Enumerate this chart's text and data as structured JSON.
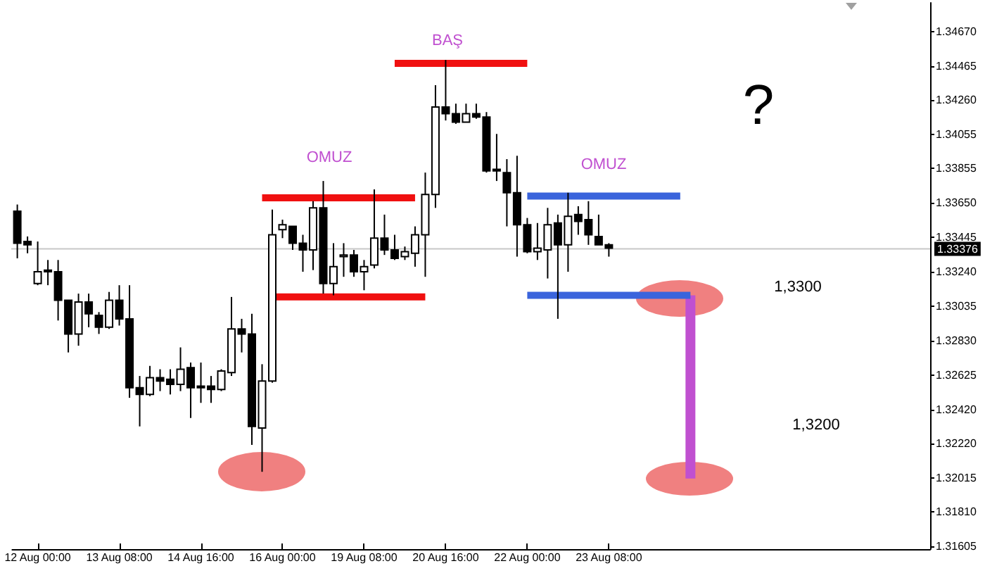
{
  "chart_data": {
    "type": "candlestick",
    "categories": [
      null,
      null,
      "12 Aug 00:00",
      null,
      null,
      null,
      null,
      null,
      null,
      null,
      "13 Aug 08:00",
      null,
      null,
      null,
      null,
      null,
      null,
      null,
      "14 Aug 16:00",
      null,
      null,
      null,
      null,
      null,
      null,
      null,
      "16 Aug 00:00",
      null,
      null,
      null,
      null,
      null,
      null,
      null,
      "19 Aug 08:00",
      null,
      null,
      null,
      null,
      null,
      null,
      null,
      "20 Aug 16:00",
      null,
      null,
      null,
      null,
      null,
      null,
      null,
      "22 Aug 00:00",
      null,
      null,
      null,
      null,
      null,
      null,
      null,
      "23 Aug 08:00",
      null,
      null,
      null,
      null,
      null,
      null,
      null,
      null,
      null,
      null,
      null,
      null,
      null,
      null,
      null,
      null,
      null,
      null,
      null,
      null,
      null,
      null,
      null,
      null,
      null,
      null,
      null,
      null,
      null,
      null,
      null
    ],
    "ohlc": [
      [
        1.336,
        1.3364,
        1.3332,
        1.3341
      ],
      [
        1.3342,
        1.3345,
        1.3335,
        1.334
      ],
      [
        1.3317,
        1.3342,
        1.3316,
        1.3324
      ],
      [
        1.3325,
        1.3331,
        1.3316,
        1.3324
      ],
      [
        1.3324,
        1.3331,
        1.3295,
        1.3307
      ],
      [
        1.3307,
        1.3307,
        1.3276,
        1.3287
      ],
      [
        1.3287,
        1.3311,
        1.328,
        1.3306
      ],
      [
        1.3306,
        1.3311,
        1.3291,
        1.3299
      ],
      [
        1.3298,
        1.33,
        1.3287,
        1.3291
      ],
      [
        1.3291,
        1.3312,
        1.329,
        1.3307
      ],
      [
        1.3307,
        1.3316,
        1.3292,
        1.3296
      ],
      [
        1.3296,
        1.3316,
        1.3249,
        1.3255
      ],
      [
        1.3255,
        1.3262,
        1.3232,
        1.3251
      ],
      [
        1.3251,
        1.3268,
        1.325,
        1.3261
      ],
      [
        1.3261,
        1.3266,
        1.3253,
        1.3259
      ],
      [
        1.326,
        1.3266,
        1.3251,
        1.3257
      ],
      [
        1.3257,
        1.3279,
        1.3253,
        1.3266
      ],
      [
        1.3267,
        1.327,
        1.3237,
        1.3255
      ],
      [
        1.3256,
        1.327,
        1.3246,
        1.3255
      ],
      [
        1.3256,
        1.3262,
        1.3246,
        1.3254
      ],
      [
        1.3254,
        1.3266,
        1.3253,
        1.3265
      ],
      [
        1.3264,
        1.3309,
        1.3262,
        1.329
      ],
      [
        1.329,
        1.3296,
        1.3276,
        1.3287
      ],
      [
        1.3287,
        1.3299,
        1.3221,
        1.3232
      ],
      [
        1.3231,
        1.3269,
        1.3205,
        1.3259
      ],
      [
        1.3259,
        1.3361,
        1.3258,
        1.3346
      ],
      [
        1.3349,
        1.3355,
        1.3344,
        1.3352
      ],
      [
        1.3351,
        1.3351,
        1.3337,
        1.3341
      ],
      [
        1.3341,
        1.3346,
        1.3324,
        1.3337
      ],
      [
        1.3337,
        1.3366,
        1.3325,
        1.3362
      ],
      [
        1.3362,
        1.3378,
        1.3311,
        1.3317
      ],
      [
        1.3317,
        1.3341,
        1.331,
        1.3327
      ],
      [
        1.3333,
        1.3341,
        1.3321,
        1.3334
      ],
      [
        1.3334,
        1.3337,
        1.3321,
        1.3324
      ],
      [
        1.3324,
        1.3331,
        1.3313,
        1.3327
      ],
      [
        1.3328,
        1.3373,
        1.3326,
        1.3344
      ],
      [
        1.3344,
        1.3358,
        1.3334,
        1.3337
      ],
      [
        1.3337,
        1.3346,
        1.3331,
        1.3332
      ],
      [
        1.3333,
        1.3339,
        1.3331,
        1.3336
      ],
      [
        1.3335,
        1.3351,
        1.3327,
        1.3346
      ],
      [
        1.3346,
        1.3383,
        1.3321,
        1.337
      ],
      [
        1.337,
        1.3435,
        1.3362,
        1.3422
      ],
      [
        1.3422,
        1.345,
        1.3414,
        1.3418
      ],
      [
        1.3418,
        1.3424,
        1.3412,
        1.3413
      ],
      [
        1.3413,
        1.3424,
        1.3413,
        1.3418
      ],
      [
        1.3418,
        1.3424,
        1.3415,
        1.3416
      ],
      [
        1.3416,
        1.3419,
        1.3383,
        1.3384
      ],
      [
        1.3385,
        1.3406,
        1.3378,
        1.3384
      ],
      [
        1.3383,
        1.3391,
        1.3351,
        1.3371
      ],
      [
        1.3371,
        1.3393,
        1.3333,
        1.3352
      ],
      [
        1.3352,
        1.3356,
        1.3335,
        1.3336
      ],
      [
        1.3336,
        1.3353,
        1.3331,
        1.3338
      ],
      [
        1.3337,
        1.3362,
        1.332,
        1.3352
      ],
      [
        1.3353,
        1.3358,
        1.3296,
        1.334
      ],
      [
        1.334,
        1.3371,
        1.3324,
        1.3357
      ],
      [
        1.3358,
        1.3363,
        1.3346,
        1.3354
      ],
      [
        1.3355,
        1.3366,
        1.334,
        1.3346
      ],
      [
        1.3345,
        1.3358,
        1.334,
        1.334
      ],
      [
        1.334,
        1.3341,
        1.3333,
        1.3338
      ],
      null,
      null,
      null,
      null,
      null,
      null,
      null,
      null,
      null,
      null,
      null,
      null,
      null,
      null,
      null,
      null,
      null,
      null,
      null,
      null,
      null,
      null,
      null,
      null,
      null,
      null,
      null,
      null,
      null,
      null,
      null
    ],
    "series": [
      {
        "type": "line",
        "color": "#f01010",
        "marker": "none",
        "line_style": "solid",
        "values": [
          null,
          null,
          null,
          null,
          null,
          null,
          null,
          null,
          null,
          null,
          null,
          null,
          null,
          null,
          null,
          null,
          null,
          null,
          null,
          null,
          null,
          null,
          null,
          null,
          null,
          null,
          null,
          null,
          null,
          null,
          null,
          null,
          null,
          null,
          null,
          null,
          null,
          1.3448,
          1.3448,
          1.3448,
          1.3448,
          1.3448,
          1.3448,
          1.3448,
          1.3448,
          1.3448,
          1.3448,
          1.3448,
          1.3448,
          1.3448,
          1.3448,
          null,
          null,
          null,
          null,
          null,
          null,
          null,
          null,
          null,
          null,
          null,
          null,
          null,
          null,
          null,
          null,
          null,
          null,
          null,
          null,
          null,
          null,
          null,
          null,
          null,
          null,
          null,
          null,
          null,
          null,
          null,
          null,
          null,
          null,
          null,
          null,
          null,
          null,
          null
        ]
      },
      {
        "type": "line",
        "color": "#f01010",
        "marker": "none",
        "line_style": "solid",
        "values": [
          null,
          null,
          null,
          null,
          null,
          null,
          null,
          null,
          null,
          null,
          null,
          null,
          null,
          null,
          null,
          null,
          null,
          null,
          null,
          null,
          null,
          null,
          null,
          null,
          1.3368,
          1.3368,
          1.3368,
          1.3368,
          1.3368,
          1.3368,
          1.3368,
          1.3368,
          1.3368,
          1.3368,
          1.3368,
          1.3368,
          1.3368,
          1.3368,
          1.3368,
          1.3368,
          null,
          null,
          null,
          null,
          null,
          null,
          null,
          null,
          null,
          null,
          null,
          null,
          null,
          null,
          null,
          null,
          null,
          null,
          null,
          null,
          null,
          null,
          null,
          null,
          null,
          null,
          null,
          null,
          null,
          null,
          null,
          null,
          null,
          null,
          null,
          null,
          null,
          null,
          null,
          null,
          null,
          null,
          null,
          null,
          null,
          null,
          null,
          null,
          null,
          null
        ]
      },
      {
        "type": "line",
        "color": "#f01010",
        "marker": "none",
        "line_style": "solid",
        "values": [
          null,
          null,
          null,
          null,
          null,
          null,
          null,
          null,
          null,
          null,
          null,
          null,
          null,
          null,
          null,
          null,
          null,
          null,
          null,
          null,
          null,
          null,
          null,
          null,
          null,
          1.3309,
          1.3309,
          1.3309,
          1.3309,
          1.3309,
          1.3309,
          1.3309,
          1.3309,
          1.3309,
          1.3309,
          1.3309,
          1.3309,
          1.3309,
          1.3309,
          1.3309,
          1.3309,
          null,
          null,
          null,
          null,
          null,
          null,
          null,
          null,
          null,
          null,
          null,
          null,
          null,
          null,
          null,
          null,
          null,
          null,
          null,
          null,
          null,
          null,
          null,
          null,
          null,
          null,
          null,
          null,
          null,
          null,
          null,
          null,
          null,
          null,
          null,
          null,
          null,
          null,
          null,
          null,
          null,
          null,
          null,
          null,
          null,
          null,
          null,
          null,
          null
        ]
      },
      {
        "type": "line",
        "color": "#3a64dc",
        "marker": "none",
        "line_style": "solid",
        "values": [
          null,
          null,
          null,
          null,
          null,
          null,
          null,
          null,
          null,
          null,
          null,
          null,
          null,
          null,
          null,
          null,
          null,
          null,
          null,
          null,
          null,
          null,
          null,
          null,
          null,
          null,
          null,
          null,
          null,
          null,
          null,
          null,
          null,
          null,
          null,
          null,
          null,
          null,
          null,
          null,
          null,
          null,
          null,
          null,
          null,
          null,
          null,
          null,
          null,
          null,
          1.3369,
          1.3369,
          1.3369,
          1.3369,
          1.3369,
          1.3369,
          1.3369,
          1.3369,
          1.3369,
          1.3369,
          1.3369,
          1.3369,
          1.3369,
          1.3369,
          1.3369,
          1.3369,
          null,
          null,
          null,
          null,
          null,
          null,
          null,
          null,
          null,
          null,
          null,
          null,
          null,
          null,
          null,
          null,
          null,
          null,
          null,
          null,
          null,
          null,
          null,
          null
        ]
      },
      {
        "type": "line",
        "color": "#3a64dc",
        "marker": "none",
        "line_style": "solid",
        "values": [
          null,
          null,
          null,
          null,
          null,
          null,
          null,
          null,
          null,
          null,
          null,
          null,
          null,
          null,
          null,
          null,
          null,
          null,
          null,
          null,
          null,
          null,
          null,
          null,
          null,
          null,
          null,
          null,
          null,
          null,
          null,
          null,
          null,
          null,
          null,
          null,
          null,
          null,
          null,
          null,
          null,
          null,
          null,
          null,
          null,
          null,
          null,
          null,
          null,
          null,
          1.331,
          1.331,
          1.331,
          1.331,
          1.331,
          1.331,
          1.331,
          1.331,
          1.331,
          1.331,
          1.331,
          1.331,
          1.331,
          1.331,
          1.331,
          1.331,
          1.331,
          null,
          null,
          null,
          null,
          null,
          null,
          null,
          null,
          null,
          null,
          null,
          null,
          null,
          null,
          null,
          null,
          null,
          null,
          null,
          null,
          null,
          null,
          null
        ]
      },
      {
        "type": "bar",
        "color": "#c050d0",
        "values": [
          null,
          null,
          null,
          null,
          null,
          null,
          null,
          null,
          null,
          null,
          null,
          null,
          null,
          null,
          null,
          null,
          null,
          null,
          null,
          null,
          null,
          null,
          null,
          null,
          null,
          null,
          null,
          null,
          null,
          null,
          null,
          null,
          null,
          null,
          null,
          null,
          null,
          null,
          null,
          null,
          null,
          null,
          null,
          null,
          null,
          null,
          null,
          null,
          null,
          null,
          null,
          null,
          null,
          null,
          null,
          null,
          null,
          null,
          null,
          null,
          null,
          null,
          null,
          null,
          null,
          null,
          0.0109,
          null,
          null,
          null,
          null,
          null,
          null,
          null,
          null,
          null,
          null,
          null,
          null,
          null,
          null,
          null,
          null,
          null,
          null,
          null,
          null,
          null,
          null,
          null
        ],
        "base": [
          null,
          null,
          null,
          null,
          null,
          null,
          null,
          null,
          null,
          null,
          null,
          null,
          null,
          null,
          null,
          null,
          null,
          null,
          null,
          null,
          null,
          null,
          null,
          null,
          null,
          null,
          null,
          null,
          null,
          null,
          null,
          null,
          null,
          null,
          null,
          null,
          null,
          null,
          null,
          null,
          null,
          null,
          null,
          null,
          null,
          null,
          null,
          null,
          null,
          null,
          null,
          null,
          null,
          null,
          null,
          null,
          null,
          null,
          null,
          null,
          null,
          null,
          null,
          null,
          null,
          null,
          1.3201,
          null,
          null,
          null,
          null,
          null,
          null,
          null,
          null,
          null,
          null,
          null,
          null,
          null,
          null,
          null,
          null,
          null,
          null,
          null,
          null,
          null,
          null,
          null
        ]
      }
    ],
    "ylim": [
      1.3159,
      1.3484
    ],
    "yticks": [
      {
        "value": 1.3467,
        "label": "1.34670"
      },
      {
        "value": 1.34465,
        "label": "1.34465"
      },
      {
        "value": 1.3426,
        "label": "1.34260"
      },
      {
        "value": 1.34055,
        "label": "1.34055"
      },
      {
        "value": 1.33855,
        "label": "1.33855"
      },
      {
        "value": 1.3365,
        "label": "1.33650"
      },
      {
        "value": 1.33445,
        "label": "1.33445"
      },
      {
        "value": 1.3324,
        "label": "1.33240"
      },
      {
        "value": 1.33035,
        "label": "1.33035"
      },
      {
        "value": 1.3283,
        "label": "1.32830"
      },
      {
        "value": 1.32625,
        "label": "1.32625"
      },
      {
        "value": 1.3242,
        "label": "1.32420"
      },
      {
        "value": 1.3222,
        "label": "1.32220"
      },
      {
        "value": 1.32015,
        "label": "1.32015"
      },
      {
        "value": 1.3181,
        "label": "1.31810"
      },
      {
        "value": 1.31605,
        "label": "1.31605"
      }
    ],
    "ref_lines": [
      {
        "axis": "y",
        "value": 1.33376,
        "label": "1.33376",
        "color": "#c8c8c8"
      }
    ],
    "annotations": [
      "BAŞ",
      "OMUZ",
      "OMUZ",
      "?",
      "1,3300",
      "1,3200"
    ],
    "grid": false
  }
}
